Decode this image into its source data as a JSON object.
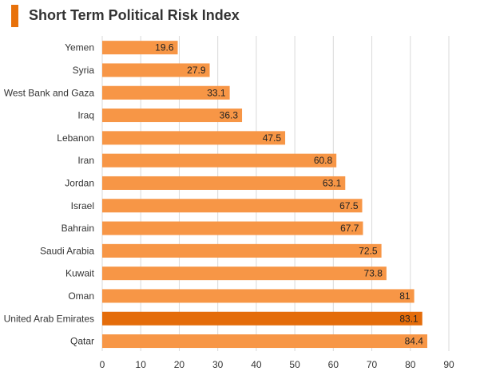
{
  "colors": {
    "accent": "#e8710a",
    "bar": "#f79646",
    "highlight": "#e46c0a",
    "grid": "#d9d9d9"
  },
  "chart_data": {
    "type": "bar",
    "orientation": "horizontal",
    "title": "Short Term Political Risk Index",
    "categories": [
      "Yemen",
      "Syria",
      "West Bank and Gaza",
      "Iraq",
      "Lebanon",
      "Iran",
      "Jordan",
      "Israel",
      "Bahrain",
      "Saudi Arabia",
      "Kuwait",
      "Oman",
      "United Arab Emirates",
      "Qatar"
    ],
    "values": [
      19.6,
      27.9,
      33.1,
      36.3,
      47.5,
      60.8,
      63.1,
      67.5,
      67.7,
      72.5,
      73.8,
      81,
      83.1,
      84.4
    ],
    "highlighted": "United Arab Emirates",
    "xlim": [
      0,
      90
    ],
    "xticks": [
      0,
      10,
      20,
      30,
      40,
      50,
      60,
      70,
      80,
      90
    ],
    "grid": true,
    "xlabel": "",
    "ylabel": ""
  }
}
